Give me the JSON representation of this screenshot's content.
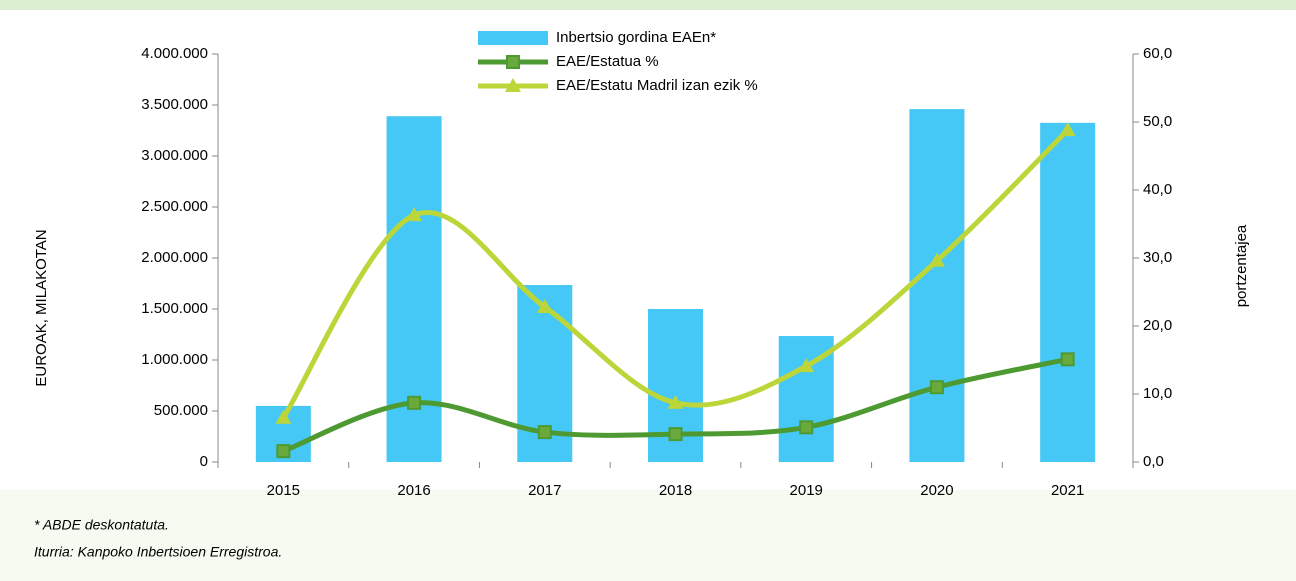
{
  "chart_data": {
    "type": "bar-line",
    "categories": [
      "2015",
      "2016",
      "2017",
      "2018",
      "2019",
      "2020",
      "2021"
    ],
    "ylabel": "EUROAK, MILAKOTAN",
    "y2label": "portzentajea",
    "ylim": [
      0,
      4000000
    ],
    "yticks": [
      0,
      {
        "value": 500000,
        "label": "500.000"
      },
      {
        "value": 1000000,
        "label": "1.000.000"
      },
      {
        "value": 1500000,
        "label": "1.500.000"
      },
      {
        "value": 2000000,
        "label": "2.000.000"
      },
      {
        "value": 2500000,
        "label": "2.500.000"
      },
      {
        "value": 3000000,
        "label": "3.000.000"
      },
      {
        "value": 3500000,
        "label": "3.500.000"
      },
      {
        "value": 4000000,
        "label": "4.000.000"
      }
    ],
    "y2lim": [
      0,
      60
    ],
    "y2ticks": [
      {
        "value": 0,
        "label": "0,0"
      },
      {
        "value": 10,
        "label": "10,0"
      },
      {
        "value": 20,
        "label": "20,0"
      },
      {
        "value": 30,
        "label": "30,0"
      },
      {
        "value": 40,
        "label": "40,0"
      },
      {
        "value": 50,
        "label": "50,0"
      },
      {
        "value": 60,
        "label": "60,0"
      }
    ],
    "series": [
      {
        "name": "Inbertsio gordina EAEn*",
        "type": "bar",
        "color": "#45c8f5",
        "values": [
          550000,
          3390000,
          1735000,
          1500000,
          1235000,
          3460000,
          3325000
        ]
      },
      {
        "name": "EAE/Estatua %",
        "type": "line",
        "axis": "y2",
        "color": "#4e9a32",
        "marker_color": "#6aaa3c",
        "values": [
          1.6,
          8.7,
          4.4,
          4.1,
          5.1,
          11.0,
          15.1
        ]
      },
      {
        "name": "EAE/Estatu Madril izan ezik %",
        "type": "line",
        "axis": "y2",
        "color": "#bcd639",
        "values": [
          6.5,
          36.3,
          22.8,
          8.7,
          14.1,
          29.6,
          48.8
        ]
      }
    ],
    "notes": [
      "* ABDE deskontatuta.",
      "Iturria: Kanpoko Inbertsioen Erregistroa."
    ]
  }
}
